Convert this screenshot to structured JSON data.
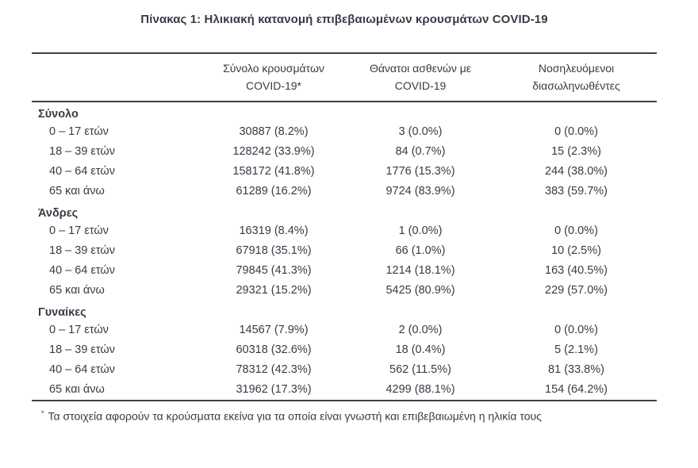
{
  "title": "Πίνακας 1: Ηλικιακή κατανομή επιβεβαιωμένων κρουσμάτων COVID-19",
  "table": {
    "columns": [
      {
        "line1": "Σύνολο κρουσμάτων",
        "line2": "COVID-19*"
      },
      {
        "line1": "Θάνατοι ασθενών με",
        "line2": "COVID-19"
      },
      {
        "line1": "Νοσηλευόμενοι",
        "line2": "διασωληνωθέντες"
      }
    ],
    "sections": [
      {
        "label": "Σύνολο",
        "rows": [
          {
            "age": "0 – 17 ετών",
            "cells": [
              "30887 (8.2%)",
              "3 (0.0%)",
              "0 (0.0%)"
            ]
          },
          {
            "age": "18 – 39 ετών",
            "cells": [
              "128242 (33.9%)",
              "84 (0.7%)",
              "15 (2.3%)"
            ]
          },
          {
            "age": "40 – 64 ετών",
            "cells": [
              "158172 (41.8%)",
              "1776 (15.3%)",
              "244 (38.0%)"
            ]
          },
          {
            "age": "65 και άνω",
            "cells": [
              "61289 (16.2%)",
              "9724 (83.9%)",
              "383 (59.7%)"
            ]
          }
        ]
      },
      {
        "label": "Άνδρες",
        "rows": [
          {
            "age": "0 – 17 ετών",
            "cells": [
              "16319 (8.4%)",
              "1 (0.0%)",
              "0 (0.0%)"
            ]
          },
          {
            "age": "18 – 39 ετών",
            "cells": [
              "67918 (35.1%)",
              "66 (1.0%)",
              "10 (2.5%)"
            ]
          },
          {
            "age": "40 – 64 ετών",
            "cells": [
              "79845 (41.3%)",
              "1214 (18.1%)",
              "163 (40.5%)"
            ]
          },
          {
            "age": "65 και άνω",
            "cells": [
              "29321 (15.2%)",
              "5425 (80.9%)",
              "229 (57.0%)"
            ]
          }
        ]
      },
      {
        "label": "Γυναίκες",
        "rows": [
          {
            "age": "0 – 17 ετών",
            "cells": [
              "14567 (7.9%)",
              "2 (0.0%)",
              "0 (0.0%)"
            ]
          },
          {
            "age": "18 – 39 ετών",
            "cells": [
              "60318 (32.6%)",
              "18 (0.4%)",
              "5 (2.1%)"
            ]
          },
          {
            "age": "40 – 64 ετών",
            "cells": [
              "78312 (42.3%)",
              "562 (11.5%)",
              "81 (33.8%)"
            ]
          },
          {
            "age": "65 και άνω",
            "cells": [
              "31962 (17.3%)",
              "4299 (88.1%)",
              "154 (64.2%)"
            ]
          }
        ]
      }
    ]
  },
  "footnote": {
    "marker": "*",
    "text": "Τα στοιχεία αφορούν τα κρούσματα εκείνα για τα οποία είναι γνωστή και επιβεβαιωμένη η ηλικία τους"
  },
  "colors": {
    "text": "#363c46",
    "rule": "#3d3f42",
    "background": "#ffffff"
  }
}
